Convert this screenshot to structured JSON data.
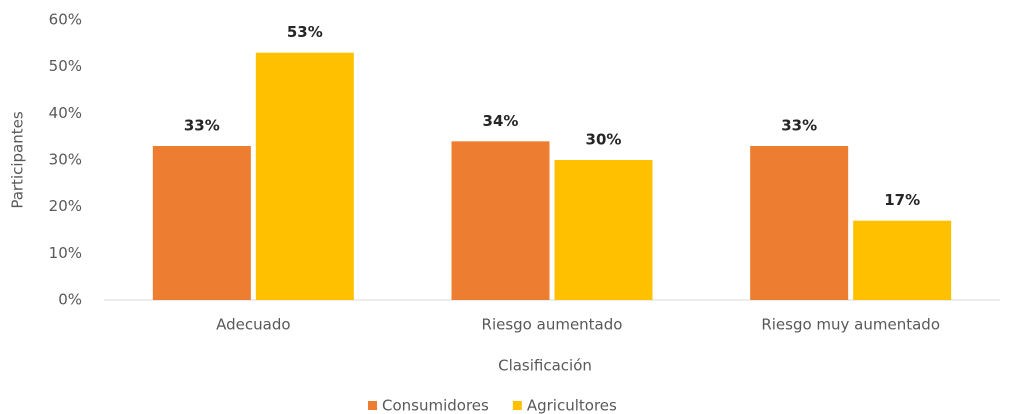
{
  "chart_data": {
    "type": "bar",
    "xlabel": "Clasificación",
    "ylabel": "Participantes",
    "categories": [
      "Adecuado",
      "Riesgo aumentado",
      "Riesgo muy aumentado"
    ],
    "series": [
      {
        "name": "Consumidores",
        "color": "#ed7d31",
        "values": [
          33,
          34,
          33
        ],
        "value_labels": [
          "33%",
          "34%",
          "33%"
        ]
      },
      {
        "name": "Agricultores",
        "color": "#ffc000",
        "values": [
          53,
          30,
          17
        ],
        "value_labels": [
          "53%",
          "30%",
          "17%"
        ]
      }
    ],
    "ylim": [
      0,
      60
    ],
    "yticks": [
      {
        "value": 0,
        "label": "0%"
      },
      {
        "value": 10,
        "label": "10%"
      },
      {
        "value": 20,
        "label": "20%"
      },
      {
        "value": 30,
        "label": "30%"
      },
      {
        "value": 40,
        "label": "40%"
      },
      {
        "value": 50,
        "label": "50%"
      },
      {
        "value": 60,
        "label": "60%"
      }
    ],
    "grid": false,
    "legend": "bottom"
  }
}
